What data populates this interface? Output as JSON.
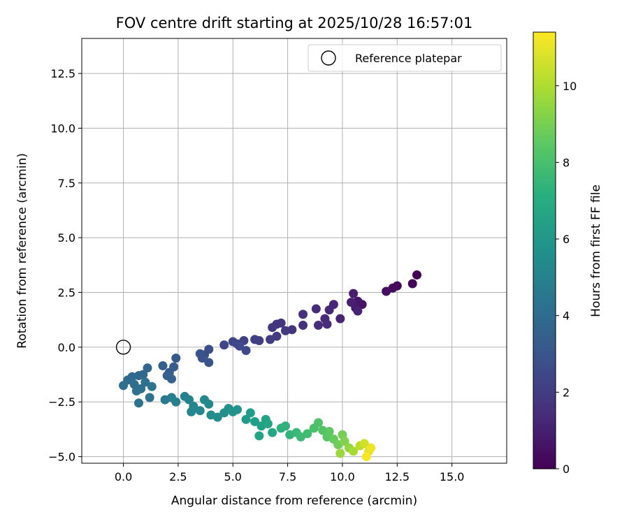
{
  "chart_data": {
    "type": "scatter",
    "title": "FOV centre drift starting at 2025/10/28 16:57:01",
    "xlabel": "Angular distance from reference (arcmin)",
    "ylabel": "Rotation from reference (arcmin)",
    "xlim": [
      -1.9,
      17.5
    ],
    "ylim": [
      -5.3,
      14.1
    ],
    "xticks": [
      0.0,
      2.5,
      5.0,
      7.5,
      10.0,
      12.5,
      15.0
    ],
    "xtick_labels": [
      "0.0",
      "2.5",
      "5.0",
      "7.5",
      "10.0",
      "12.5",
      "15.0"
    ],
    "yticks": [
      -5.0,
      -2.5,
      0.0,
      2.5,
      5.0,
      7.5,
      10.0,
      12.5
    ],
    "ytick_labels": [
      "−5.0",
      "−2.5",
      "0.0",
      "2.5",
      "5.0",
      "7.5",
      "10.0",
      "12.5"
    ],
    "grid": true,
    "legend": {
      "position": "top-right",
      "entries": [
        "Reference platepar"
      ]
    },
    "reference_point": {
      "x": 0.0,
      "y": 0.0,
      "marker": "open-circle",
      "label": "Reference platepar"
    },
    "colorbar": {
      "label": "Hours from first FF file",
      "range": [
        0,
        11.4
      ],
      "ticks": [
        0,
        2,
        4,
        6,
        8,
        10
      ],
      "tick_labels": [
        "0",
        "2",
        "4",
        "6",
        "8",
        "10"
      ],
      "colormap": "viridis"
    },
    "series": [
      {
        "name": "FOV centre drift",
        "points": [
          {
            "x": 13.4,
            "y": 3.3,
            "t": 0.05
          },
          {
            "x": 13.2,
            "y": 2.9,
            "t": 0.15
          },
          {
            "x": 12.5,
            "y": 2.8,
            "t": 0.25
          },
          {
            "x": 12.3,
            "y": 2.7,
            "t": 0.35
          },
          {
            "x": 12.0,
            "y": 2.55,
            "t": 0.45
          },
          {
            "x": 10.9,
            "y": 1.95,
            "t": 0.6
          },
          {
            "x": 10.7,
            "y": 2.1,
            "t": 0.7
          },
          {
            "x": 10.6,
            "y": 1.8,
            "t": 0.8
          },
          {
            "x": 10.5,
            "y": 2.45,
            "t": 0.9
          },
          {
            "x": 10.4,
            "y": 2.05,
            "t": 1.0
          },
          {
            "x": 10.7,
            "y": 1.65,
            "t": 1.05
          },
          {
            "x": 9.9,
            "y": 1.3,
            "t": 1.15
          },
          {
            "x": 9.6,
            "y": 1.95,
            "t": 1.25
          },
          {
            "x": 9.4,
            "y": 1.7,
            "t": 1.3
          },
          {
            "x": 9.2,
            "y": 1.3,
            "t": 1.35
          },
          {
            "x": 8.8,
            "y": 1.75,
            "t": 1.4
          },
          {
            "x": 8.9,
            "y": 1.0,
            "t": 1.45
          },
          {
            "x": 9.3,
            "y": 1.05,
            "t": 1.5
          },
          {
            "x": 8.2,
            "y": 1.5,
            "t": 1.6
          },
          {
            "x": 8.2,
            "y": 1.0,
            "t": 1.65
          },
          {
            "x": 7.7,
            "y": 0.8,
            "t": 1.7
          },
          {
            "x": 7.2,
            "y": 1.1,
            "t": 1.75
          },
          {
            "x": 7.0,
            "y": 1.05,
            "t": 1.8
          },
          {
            "x": 6.8,
            "y": 0.9,
            "t": 1.85
          },
          {
            "x": 7.4,
            "y": 0.75,
            "t": 1.9
          },
          {
            "x": 7.0,
            "y": 0.5,
            "t": 1.95
          },
          {
            "x": 6.7,
            "y": 0.35,
            "t": 2.0
          },
          {
            "x": 6.2,
            "y": 0.3,
            "t": 2.1
          },
          {
            "x": 6.0,
            "y": 0.35,
            "t": 2.15
          },
          {
            "x": 5.5,
            "y": 0.3,
            "t": 2.2
          },
          {
            "x": 5.2,
            "y": 0.15,
            "t": 2.3
          },
          {
            "x": 5.0,
            "y": 0.25,
            "t": 2.35
          },
          {
            "x": 4.6,
            "y": 0.1,
            "t": 2.4
          },
          {
            "x": 5.6,
            "y": -0.15,
            "t": 2.5
          },
          {
            "x": 5.3,
            "y": 0.05,
            "t": 2.55
          },
          {
            "x": 3.9,
            "y": -0.1,
            "t": 2.7
          },
          {
            "x": 3.7,
            "y": -0.35,
            "t": 2.8
          },
          {
            "x": 3.6,
            "y": -0.5,
            "t": 2.85
          },
          {
            "x": 3.9,
            "y": -0.7,
            "t": 2.9
          },
          {
            "x": 3.5,
            "y": -0.3,
            "t": 2.95
          },
          {
            "x": 2.4,
            "y": -0.5,
            "t": 3.2
          },
          {
            "x": 2.3,
            "y": -0.9,
            "t": 3.3
          },
          {
            "x": 2.1,
            "y": -1.15,
            "t": 3.35
          },
          {
            "x": 1.8,
            "y": -0.85,
            "t": 3.4
          },
          {
            "x": 2.0,
            "y": -1.3,
            "t": 3.45
          },
          {
            "x": 2.2,
            "y": -1.45,
            "t": 3.5
          },
          {
            "x": 1.1,
            "y": -0.95,
            "t": 3.7
          },
          {
            "x": 0.9,
            "y": -1.25,
            "t": 3.8
          },
          {
            "x": 0.7,
            "y": -1.3,
            "t": 3.85
          },
          {
            "x": 0.4,
            "y": -1.35,
            "t": 3.9
          },
          {
            "x": 0.2,
            "y": -1.5,
            "t": 3.95
          },
          {
            "x": 0.5,
            "y": -1.7,
            "t": 4.0
          },
          {
            "x": 0.0,
            "y": -1.75,
            "t": 4.05
          },
          {
            "x": 0.8,
            "y": -1.9,
            "t": 4.1
          },
          {
            "x": 1.0,
            "y": -1.6,
            "t": 4.15
          },
          {
            "x": 0.6,
            "y": -2.0,
            "t": 4.2
          },
          {
            "x": 1.2,
            "y": -2.3,
            "t": 4.3
          },
          {
            "x": 0.7,
            "y": -2.55,
            "t": 4.35
          },
          {
            "x": 1.3,
            "y": -1.8,
            "t": 4.45
          },
          {
            "x": 1.9,
            "y": -2.4,
            "t": 4.7
          },
          {
            "x": 2.2,
            "y": -2.3,
            "t": 4.8
          },
          {
            "x": 2.4,
            "y": -2.5,
            "t": 4.9
          },
          {
            "x": 2.8,
            "y": -2.25,
            "t": 5.0
          },
          {
            "x": 3.0,
            "y": -2.4,
            "t": 5.1
          },
          {
            "x": 3.2,
            "y": -2.7,
            "t": 5.2
          },
          {
            "x": 3.1,
            "y": -2.95,
            "t": 5.25
          },
          {
            "x": 3.5,
            "y": -2.9,
            "t": 5.3
          },
          {
            "x": 3.7,
            "y": -2.4,
            "t": 5.35
          },
          {
            "x": 3.9,
            "y": -2.6,
            "t": 5.4
          },
          {
            "x": 4.0,
            "y": -3.1,
            "t": 5.5
          },
          {
            "x": 4.3,
            "y": -3.2,
            "t": 5.55
          },
          {
            "x": 4.6,
            "y": -3.0,
            "t": 5.6
          },
          {
            "x": 4.8,
            "y": -2.8,
            "t": 5.7
          },
          {
            "x": 5.0,
            "y": -2.95,
            "t": 5.8
          },
          {
            "x": 5.2,
            "y": -2.85,
            "t": 5.85
          },
          {
            "x": 5.6,
            "y": -3.3,
            "t": 6.2
          },
          {
            "x": 5.8,
            "y": -3.0,
            "t": 6.3
          },
          {
            "x": 6.0,
            "y": -3.4,
            "t": 6.4
          },
          {
            "x": 6.3,
            "y": -3.6,
            "t": 6.5
          },
          {
            "x": 6.2,
            "y": -4.05,
            "t": 6.55
          },
          {
            "x": 6.5,
            "y": -3.3,
            "t": 6.6
          },
          {
            "x": 6.6,
            "y": -3.5,
            "t": 6.7
          },
          {
            "x": 6.8,
            "y": -3.9,
            "t": 6.75
          },
          {
            "x": 7.2,
            "y": -3.7,
            "t": 7.2
          },
          {
            "x": 7.4,
            "y": -3.6,
            "t": 7.3
          },
          {
            "x": 7.6,
            "y": -4.0,
            "t": 7.5
          },
          {
            "x": 7.9,
            "y": -3.9,
            "t": 7.7
          },
          {
            "x": 8.1,
            "y": -4.1,
            "t": 7.8
          },
          {
            "x": 8.4,
            "y": -3.95,
            "t": 7.9
          },
          {
            "x": 8.7,
            "y": -3.7,
            "t": 8.1
          },
          {
            "x": 8.9,
            "y": -3.45,
            "t": 8.2
          },
          {
            "x": 9.1,
            "y": -3.8,
            "t": 8.3
          },
          {
            "x": 9.3,
            "y": -4.1,
            "t": 8.4
          },
          {
            "x": 9.4,
            "y": -3.85,
            "t": 8.5
          },
          {
            "x": 9.6,
            "y": -4.2,
            "t": 8.7
          },
          {
            "x": 9.8,
            "y": -4.45,
            "t": 8.9
          },
          {
            "x": 10.0,
            "y": -4.0,
            "t": 9.0
          },
          {
            "x": 10.1,
            "y": -4.3,
            "t": 9.2
          },
          {
            "x": 10.3,
            "y": -4.6,
            "t": 9.5
          },
          {
            "x": 9.9,
            "y": -4.85,
            "t": 9.7
          },
          {
            "x": 10.5,
            "y": -4.75,
            "t": 9.9
          },
          {
            "x": 10.8,
            "y": -4.5,
            "t": 10.2
          },
          {
            "x": 11.0,
            "y": -4.4,
            "t": 10.6
          },
          {
            "x": 11.2,
            "y": -4.75,
            "t": 10.9
          },
          {
            "x": 11.3,
            "y": -4.6,
            "t": 11.1
          },
          {
            "x": 11.1,
            "y": -5.0,
            "t": 11.3
          }
        ]
      }
    ]
  }
}
